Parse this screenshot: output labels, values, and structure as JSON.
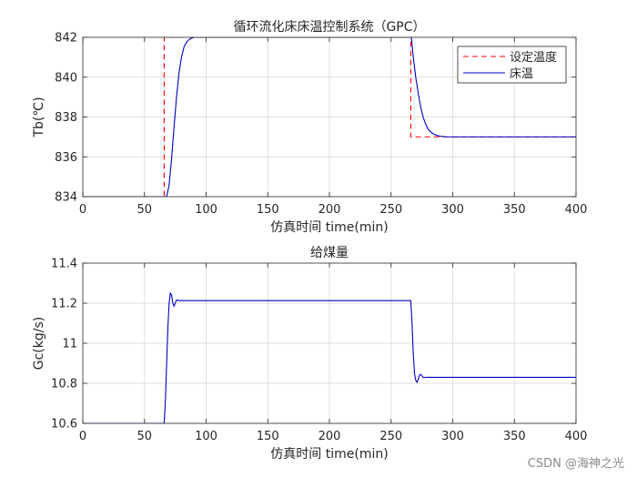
{
  "watermark": "CSDN @海神之光",
  "chart_data": [
    {
      "type": "line",
      "title": "循环流化床床温控制系统（GPC）",
      "xlabel": "仿真时间 time(min)",
      "ylabel": "Tb(℃)",
      "xlim": [
        0,
        400
      ],
      "ylim": [
        834,
        842
      ],
      "xticks": [
        0,
        50,
        100,
        150,
        200,
        250,
        300,
        350,
        400
      ],
      "yticks": [
        834,
        836,
        838,
        840,
        842
      ],
      "grid": true,
      "legend_position": "top-right",
      "series": [
        {
          "name": "设定温度",
          "style": "dashed",
          "color": "#ff0000",
          "x": [
            0,
            66,
            66,
            266,
            266,
            400
          ],
          "y": [
            834,
            834,
            842,
            842,
            837,
            837
          ]
        },
        {
          "name": "床温",
          "style": "solid",
          "color": "#0000bf",
          "x": [
            0,
            68,
            70,
            72,
            74,
            76,
            78,
            80,
            82,
            84,
            86,
            88,
            90,
            95,
            266,
            266.5,
            268,
            270,
            272,
            274,
            276,
            278,
            280,
            283,
            286,
            290,
            295,
            300,
            400
          ],
          "y": [
            834,
            834,
            834.6,
            835.9,
            837.5,
            839.0,
            840.2,
            841.0,
            841.5,
            841.75,
            841.88,
            841.95,
            842,
            842,
            842,
            842,
            841.0,
            840.0,
            839.2,
            838.5,
            838.0,
            837.65,
            837.4,
            837.2,
            837.1,
            837.03,
            837.0,
            837.0,
            837.0
          ]
        }
      ]
    },
    {
      "type": "line",
      "title": "给煤量",
      "xlabel": "仿真时间 time(min)",
      "ylabel": "Gc(kg/s)",
      "xlim": [
        0,
        400
      ],
      "ylim": [
        10.6,
        11.4
      ],
      "xticks": [
        0,
        50,
        100,
        150,
        200,
        250,
        300,
        350,
        400
      ],
      "yticks": [
        10.6,
        10.8,
        11,
        11.2,
        11.4
      ],
      "grid": true,
      "series": [
        {
          "style": "solid",
          "color": "#0000bf",
          "x": [
            0,
            66,
            67,
            68,
            69,
            70,
            71,
            72,
            73,
            74,
            75,
            76,
            77,
            78,
            80,
            84,
            266,
            267,
            268,
            269,
            270,
            271,
            272,
            273,
            274,
            275,
            276,
            277,
            278,
            280,
            284,
            400
          ],
          "y": [
            10.6,
            10.6,
            10.72,
            10.9,
            11.08,
            11.2,
            11.25,
            11.24,
            11.2,
            11.185,
            11.2,
            11.215,
            11.216,
            11.212,
            11.213,
            11.213,
            11.213,
            11.1,
            10.95,
            10.85,
            10.815,
            10.805,
            10.82,
            10.84,
            10.845,
            10.838,
            10.83,
            10.828,
            10.83,
            10.83,
            10.83,
            10.83
          ]
        }
      ]
    }
  ]
}
